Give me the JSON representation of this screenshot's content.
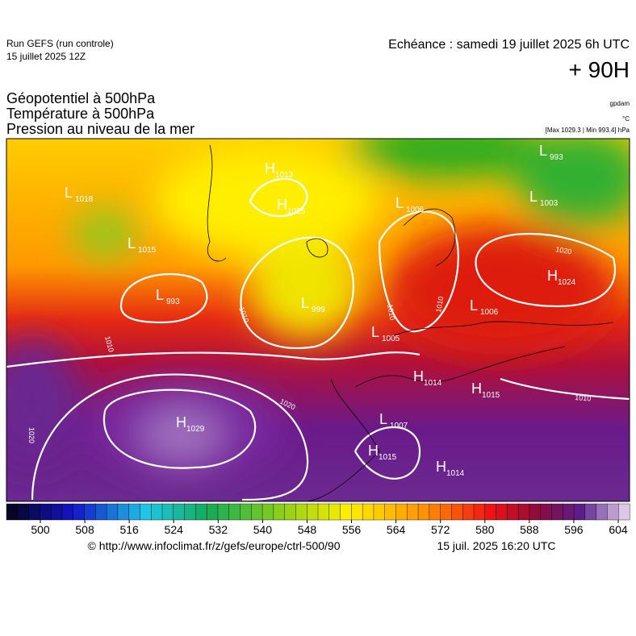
{
  "header": {
    "run": "Run GEFS (run controle)",
    "run_date": "15 juillet 2025 12Z",
    "valid": "Echéance : samedi 19 juillet 2025 6h UTC",
    "lead": "+ 90H",
    "fields": [
      "Géopotentiel à 500hPa",
      "Température à 500hPa",
      "Pression au niveau de la mer"
    ],
    "units": [
      "gpdam",
      "°C",
      "[Max 1029.3 | Min 993.4] hPa"
    ]
  },
  "map": {
    "centers": [
      {
        "type": "L",
        "value": "1018"
      },
      {
        "type": "H",
        "value": "1013"
      },
      {
        "type": "H",
        "value": "1015"
      },
      {
        "type": "L",
        "value": "1015"
      },
      {
        "type": "L",
        "value": "993"
      },
      {
        "type": "L",
        "value": "999"
      },
      {
        "type": "L",
        "value": "1006"
      },
      {
        "type": "L",
        "value": "993"
      },
      {
        "type": "L",
        "value": "1003"
      },
      {
        "type": "H",
        "value": "1024"
      },
      {
        "type": "L",
        "value": "1006"
      },
      {
        "type": "L",
        "value": "1005"
      },
      {
        "type": "H",
        "value": "1014"
      },
      {
        "type": "H",
        "value": "1015"
      },
      {
        "type": "H",
        "value": "1029"
      },
      {
        "type": "L",
        "value": "1007"
      },
      {
        "type": "H",
        "value": "1015"
      },
      {
        "type": "H",
        "value": "1014"
      }
    ],
    "isobar_labels": [
      "1010",
      "1010",
      "1010",
      "1020",
      "1020",
      "1010",
      "1020",
      "1010"
    ]
  },
  "colorbar": {
    "ticks": [
      500,
      508,
      516,
      524,
      532,
      540,
      548,
      556,
      564,
      572,
      580,
      588,
      596,
      604
    ]
  },
  "footer": {
    "source": "© http://www.infoclimat.fr/z/gefs/europe/ctrl-500/90",
    "generated": "15 juil. 2025 16:20 UTC"
  }
}
